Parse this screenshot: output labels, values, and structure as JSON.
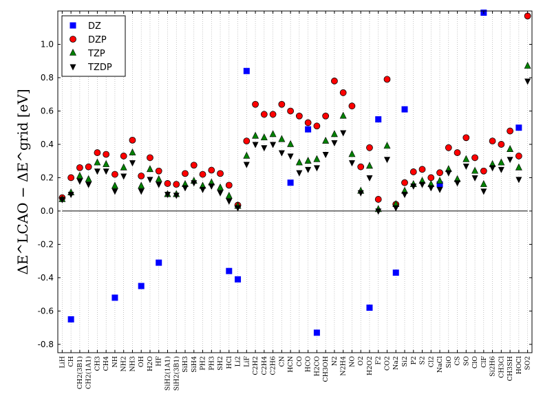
{
  "chart_data": {
    "type": "scatter",
    "title": "",
    "xlabel": "",
    "ylabel": "ΔE^LCAO − ΔE^grid [eV]",
    "ylim": [
      -0.85,
      1.2
    ],
    "yticks": [
      "1.0",
      "0.8",
      "0.6",
      "0.4",
      "0.2",
      "0.0",
      "-0.2",
      "-0.4",
      "-0.6",
      "-0.8"
    ],
    "ytick_values": [
      1.0,
      0.8,
      0.6,
      0.4,
      0.2,
      0.0,
      -0.2,
      -0.4,
      -0.6,
      -0.8
    ],
    "grid": "vertical dotted",
    "legend_position": "top-left",
    "categories": [
      "LiH",
      "CH",
      "CH2(3B1)",
      "CH2(1A1)",
      "CH3",
      "CH4",
      "NH",
      "NH2",
      "NH3",
      "OH",
      "H2O",
      "HF",
      "SiH2(1A1)",
      "SiH2(3B1)",
      "SiH3",
      "SiH4",
      "PH2",
      "PH3",
      "SH2",
      "HCl",
      "Li2",
      "LiF",
      "C2H2",
      "C2H4",
      "C2H6",
      "CN",
      "HCN",
      "CO",
      "HCO",
      "H2CO",
      "CH3OH",
      "N2",
      "N2H4",
      "NO",
      "O2",
      "H2O2",
      "F2",
      "CO2",
      "Na2",
      "Si2",
      "P2",
      "S2",
      "Cl2",
      "NaCl",
      "SiO",
      "CS",
      "SO",
      "ClO",
      "ClF",
      "Si2H6",
      "CH3Cl",
      "CH3SH",
      "HOCl",
      "SO2"
    ],
    "series": [
      {
        "name": "DZ",
        "marker": "square",
        "color": "#0000ff",
        "values": [
          null,
          -0.65,
          null,
          null,
          null,
          null,
          -0.52,
          null,
          null,
          -0.45,
          null,
          -0.31,
          null,
          null,
          null,
          null,
          null,
          null,
          null,
          -0.36,
          -0.41,
          0.84,
          null,
          null,
          null,
          null,
          0.17,
          null,
          0.49,
          -0.73,
          null,
          null,
          null,
          null,
          null,
          -0.58,
          0.55,
          null,
          -0.37,
          0.61,
          null,
          null,
          null,
          0.16,
          null,
          null,
          null,
          null,
          1.19,
          null,
          null,
          null,
          0.5,
          null
        ]
      },
      {
        "name": "DZP",
        "marker": "circle",
        "color": "#ff0000",
        "values": [
          0.08,
          0.2,
          0.26,
          0.265,
          0.35,
          0.34,
          0.22,
          0.33,
          0.425,
          0.21,
          0.32,
          0.24,
          0.165,
          0.16,
          0.225,
          0.275,
          0.22,
          0.245,
          0.225,
          0.155,
          0.035,
          0.42,
          0.64,
          0.58,
          0.58,
          0.64,
          0.6,
          0.57,
          0.53,
          0.51,
          0.57,
          0.78,
          0.71,
          0.63,
          0.265,
          0.38,
          0.07,
          0.79,
          0.04,
          0.17,
          0.235,
          0.25,
          0.2,
          0.23,
          0.38,
          0.35,
          0.44,
          0.32,
          0.24,
          0.42,
          0.4,
          0.48,
          0.33,
          1.17
        ]
      },
      {
        "name": "TZP",
        "marker": "triangle-up",
        "color": "#008000",
        "values": [
          0.07,
          0.11,
          0.21,
          0.19,
          0.29,
          0.28,
          0.15,
          0.26,
          0.35,
          0.15,
          0.25,
          0.19,
          0.1,
          0.1,
          0.16,
          0.18,
          0.15,
          0.17,
          0.14,
          0.09,
          0.03,
          0.33,
          0.45,
          0.44,
          0.46,
          0.43,
          0.4,
          0.29,
          0.3,
          0.31,
          0.42,
          0.46,
          0.57,
          0.34,
          0.12,
          0.27,
          0.01,
          0.39,
          0.04,
          0.12,
          0.16,
          0.18,
          0.16,
          0.18,
          0.25,
          0.19,
          0.31,
          0.24,
          0.16,
          0.28,
          0.29,
          0.37,
          0.26,
          0.87
        ]
      },
      {
        "name": "TZDP",
        "marker": "triangle-down",
        "color": "#000000",
        "values": [
          0.07,
          0.1,
          0.18,
          0.16,
          0.24,
          0.24,
          0.12,
          0.21,
          0.29,
          0.12,
          0.19,
          0.16,
          0.1,
          0.095,
          0.14,
          0.17,
          0.13,
          0.15,
          0.11,
          0.06,
          0.02,
          0.28,
          0.4,
          0.38,
          0.4,
          0.35,
          0.33,
          0.23,
          0.25,
          0.26,
          0.34,
          0.41,
          0.47,
          0.29,
          0.11,
          0.2,
          0.0,
          0.31,
          0.02,
          0.1,
          0.15,
          0.16,
          0.14,
          0.13,
          0.23,
          0.17,
          0.27,
          0.2,
          0.12,
          0.26,
          0.25,
          0.31,
          0.19,
          0.78
        ]
      }
    ]
  },
  "legend": {
    "items": [
      {
        "label": "DZ"
      },
      {
        "label": "DZP"
      },
      {
        "label": "TZP"
      },
      {
        "label": "TZDP"
      }
    ]
  }
}
